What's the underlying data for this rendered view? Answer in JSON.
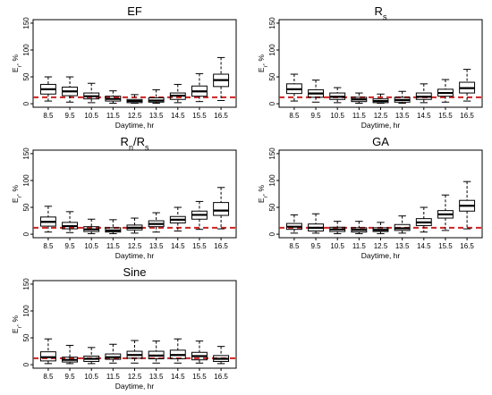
{
  "chart_data": [
    {
      "type": "boxplot",
      "title": "EF",
      "title_subscript": "",
      "xlabel": "Daytime, hr",
      "ylabel": "E",
      "ylabel_subscript": "r",
      "ylabel_suffix": ", %",
      "categories": [
        "8.5",
        "9.5",
        "10.5",
        "11.5",
        "12.5",
        "13.5",
        "14.5",
        "15.5",
        "16.5"
      ],
      "yticks": [
        0,
        50,
        100,
        150
      ],
      "ylim": [
        0,
        150
      ],
      "reference_line": 12,
      "boxes": [
        {
          "min": 5,
          "q1": 18,
          "median": 27,
          "q3": 36,
          "max": 50
        },
        {
          "min": 3,
          "q1": 15,
          "median": 23,
          "q3": 31,
          "max": 50
        },
        {
          "min": 2,
          "q1": 9,
          "median": 14,
          "q3": 20,
          "max": 38
        },
        {
          "min": 1,
          "q1": 5,
          "median": 9,
          "q3": 14,
          "max": 24
        },
        {
          "min": 1,
          "q1": 2,
          "median": 5,
          "q3": 8,
          "max": 17
        },
        {
          "min": 1,
          "q1": 3,
          "median": 6,
          "q3": 11,
          "max": 26
        },
        {
          "min": 2,
          "q1": 8,
          "median": 15,
          "q3": 20,
          "max": 36
        },
        {
          "min": 4,
          "q1": 14,
          "median": 23,
          "q3": 33,
          "max": 56
        },
        {
          "min": 6,
          "q1": 32,
          "median": 44,
          "q3": 55,
          "max": 86
        }
      ]
    },
    {
      "type": "boxplot",
      "title": "R",
      "title_subscript": "s",
      "xlabel": "Daytime, hr",
      "ylabel": "E",
      "ylabel_subscript": "r",
      "ylabel_suffix": ", %",
      "categories": [
        "8.5",
        "9.5",
        "10.5",
        "11.5",
        "12.5",
        "13.5",
        "14.5",
        "15.5",
        "16.5"
      ],
      "yticks": [
        0,
        50,
        100,
        150
      ],
      "ylim": [
        0,
        150
      ],
      "reference_line": 12,
      "boxes": [
        {
          "min": 5,
          "q1": 19,
          "median": 27,
          "q3": 37,
          "max": 55
        },
        {
          "min": 3,
          "q1": 12,
          "median": 19,
          "q3": 26,
          "max": 44
        },
        {
          "min": 2,
          "q1": 8,
          "median": 13,
          "q3": 20,
          "max": 30
        },
        {
          "min": 1,
          "q1": 4,
          "median": 8,
          "q3": 12,
          "max": 20
        },
        {
          "min": 1,
          "q1": 2,
          "median": 5,
          "q3": 9,
          "max": 18
        },
        {
          "min": 1,
          "q1": 3,
          "median": 7,
          "q3": 12,
          "max": 23
        },
        {
          "min": 2,
          "q1": 8,
          "median": 13,
          "q3": 20,
          "max": 37
        },
        {
          "min": 3,
          "q1": 14,
          "median": 20,
          "q3": 27,
          "max": 45
        },
        {
          "min": 5,
          "q1": 20,
          "median": 29,
          "q3": 40,
          "max": 64
        }
      ]
    },
    {
      "type": "boxplot",
      "title": "R",
      "title_subscript": "n",
      "title_suffix": "/R",
      "title_suffix_subscript": "s",
      "xlabel": "Daytime, hr",
      "ylabel": "E",
      "ylabel_subscript": "r",
      "ylabel_suffix": ", %",
      "categories": [
        "8.5",
        "9.5",
        "10.5",
        "11.5",
        "12.5",
        "13.5",
        "14.5",
        "15.5",
        "16.5"
      ],
      "yticks": [
        0,
        50,
        100,
        150
      ],
      "ylim": [
        0,
        150
      ],
      "reference_line": 12,
      "boxes": [
        {
          "min": 4,
          "q1": 15,
          "median": 23,
          "q3": 32,
          "max": 52
        },
        {
          "min": 3,
          "q1": 10,
          "median": 15,
          "q3": 22,
          "max": 42
        },
        {
          "min": 1,
          "q1": 5,
          "median": 9,
          "q3": 14,
          "max": 28
        },
        {
          "min": 1,
          "q1": 4,
          "median": 7,
          "q3": 12,
          "max": 27
        },
        {
          "min": 2,
          "q1": 8,
          "median": 12,
          "q3": 17,
          "max": 30
        },
        {
          "min": 4,
          "q1": 14,
          "median": 19,
          "q3": 25,
          "max": 40
        },
        {
          "min": 6,
          "q1": 21,
          "median": 27,
          "q3": 33,
          "max": 50
        },
        {
          "min": 9,
          "q1": 28,
          "median": 36,
          "q3": 43,
          "max": 61
        },
        {
          "min": 10,
          "q1": 35,
          "median": 44,
          "q3": 59,
          "max": 87
        }
      ]
    },
    {
      "type": "boxplot",
      "title": "GA",
      "title_subscript": "",
      "xlabel": "Daytime, hr",
      "ylabel": "E",
      "ylabel_subscript": "r",
      "ylabel_suffix": ", %",
      "categories": [
        "8.5",
        "9.5",
        "10.5",
        "11.5",
        "12.5",
        "13.5",
        "14.5",
        "15.5",
        "16.5"
      ],
      "yticks": [
        0,
        50,
        100,
        150
      ],
      "ylim": [
        0,
        150
      ],
      "reference_line": 12,
      "boxes": [
        {
          "min": 2,
          "q1": 9,
          "median": 14,
          "q3": 20,
          "max": 36
        },
        {
          "min": 2,
          "q1": 6,
          "median": 12,
          "q3": 19,
          "max": 38
        },
        {
          "min": 1,
          "q1": 5,
          "median": 9,
          "q3": 13,
          "max": 24
        },
        {
          "min": 1,
          "q1": 4,
          "median": 8,
          "q3": 12,
          "max": 24
        },
        {
          "min": 1,
          "q1": 5,
          "median": 8,
          "q3": 12,
          "max": 22
        },
        {
          "min": 2,
          "q1": 7,
          "median": 11,
          "q3": 18,
          "max": 34
        },
        {
          "min": 4,
          "q1": 16,
          "median": 22,
          "q3": 29,
          "max": 50
        },
        {
          "min": 7,
          "q1": 30,
          "median": 37,
          "q3": 44,
          "max": 73
        },
        {
          "min": 10,
          "q1": 43,
          "median": 53,
          "q3": 63,
          "max": 98
        }
      ]
    },
    {
      "type": "boxplot",
      "title": "Sine",
      "title_subscript": "",
      "xlabel": "Daytime, hr",
      "ylabel": "E",
      "ylabel_subscript": "r",
      "ylabel_suffix": ", %",
      "categories": [
        "8.5",
        "9.5",
        "10.5",
        "11.5",
        "12.5",
        "13.5",
        "14.5",
        "15.5",
        "16.5"
      ],
      "yticks": [
        0,
        50,
        100,
        150
      ],
      "ylim": [
        0,
        150
      ],
      "reference_line": 12,
      "boxes": [
        {
          "min": 2,
          "q1": 7,
          "median": 14,
          "q3": 24,
          "max": 48
        },
        {
          "min": 2,
          "q1": 5,
          "median": 9,
          "q3": 14,
          "max": 36
        },
        {
          "min": 2,
          "q1": 6,
          "median": 11,
          "q3": 16,
          "max": 32
        },
        {
          "min": 3,
          "q1": 10,
          "median": 14,
          "q3": 20,
          "max": 38
        },
        {
          "min": 3,
          "q1": 12,
          "median": 18,
          "q3": 25,
          "max": 45
        },
        {
          "min": 3,
          "q1": 11,
          "median": 17,
          "q3": 25,
          "max": 44
        },
        {
          "min": 3,
          "q1": 11,
          "median": 18,
          "q3": 27,
          "max": 48
        },
        {
          "min": 3,
          "q1": 9,
          "median": 16,
          "q3": 23,
          "max": 44
        },
        {
          "min": 2,
          "q1": 6,
          "median": 11,
          "q3": 17,
          "max": 34
        }
      ]
    }
  ],
  "colors": {
    "reference_line": "#cc2222",
    "box_stroke": "#000000",
    "axis": "#000000"
  }
}
